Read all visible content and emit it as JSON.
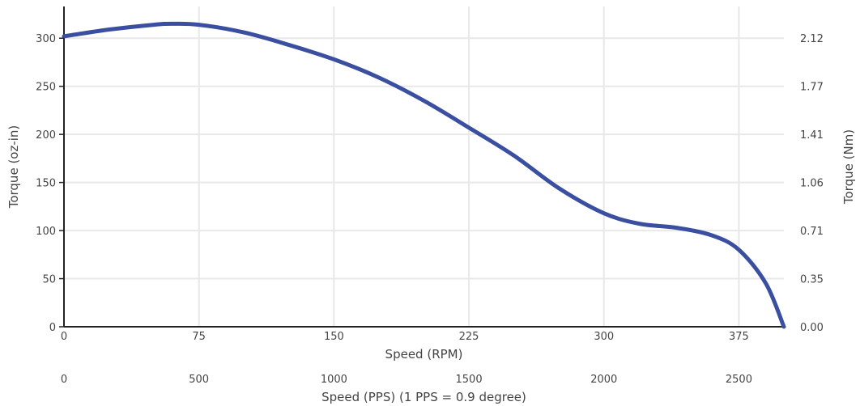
{
  "chart_data": {
    "type": "line",
    "series": [
      {
        "color": "#3a4fa0",
        "x": [
          0,
          25,
          50,
          60,
          75,
          100,
          125,
          150,
          175,
          200,
          225,
          250,
          275,
          300,
          320,
          340,
          360,
          375,
          390,
          400
        ],
        "y": [
          302,
          309,
          314,
          315,
          314,
          306,
          293,
          278,
          259,
          235,
          207,
          178,
          144,
          118,
          107,
          103,
          95,
          80,
          45,
          0
        ]
      }
    ],
    "xlabel": "Speed (RPM)",
    "ylabel": "Torque (oz-in)",
    "y2label": "Torque (Nm)",
    "x2label": "Speed (PPS) (1 PPS = 0.9 degree)",
    "xlim": [
      0,
      400
    ],
    "ylim": [
      0,
      333
    ],
    "xticks": [
      "0",
      "75",
      "150",
      "225",
      "300",
      "375"
    ],
    "xtick_values": [
      0,
      75,
      150,
      225,
      300,
      375
    ],
    "yticks": [
      "0",
      "50",
      "100",
      "150",
      "200",
      "250",
      "300"
    ],
    "ytick_values": [
      0,
      50,
      100,
      150,
      200,
      250,
      300
    ],
    "y2ticks": [
      "0.00",
      "0.35",
      "0.71",
      "1.06",
      "1.41",
      "1.77",
      "2.12"
    ],
    "x2ticks": [
      "0",
      "500",
      "1000",
      "1500",
      "2000",
      "2500"
    ],
    "x2tick_values": [
      0,
      500,
      1000,
      1500,
      2000,
      2500
    ],
    "x2lim": [
      0,
      2666.67
    ],
    "grid": true
  }
}
